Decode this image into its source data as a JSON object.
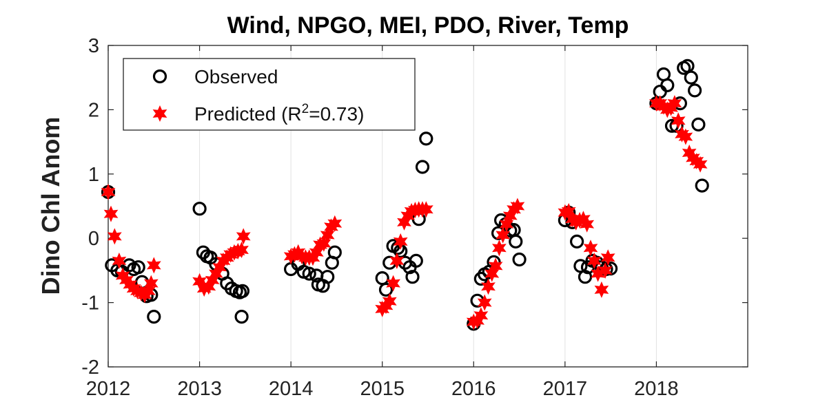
{
  "chart_data": {
    "type": "scatter",
    "title": "Wind, NPGO, MEI, PDO, River, Temp",
    "xlabel": "",
    "ylabel": "Dino Chl Anom",
    "xlim": [
      2012,
      2019
    ],
    "ylim": [
      -2,
      3
    ],
    "xticks": [
      "2012",
      "2013",
      "2014",
      "2015",
      "2016",
      "2017",
      "2018"
    ],
    "yticks": [
      "-2",
      "-1",
      "0",
      "1",
      "2",
      "3"
    ],
    "grid": "vertical",
    "legend_position": "top-left",
    "r_squared": "0.73",
    "series": [
      {
        "name": "Observed",
        "marker": "open-circle",
        "color": "#000000",
        "points": [
          [
            2012.0,
            0.72
          ],
          [
            2012.04,
            -0.42
          ],
          [
            2012.1,
            -0.5
          ],
          [
            2012.15,
            -0.52
          ],
          [
            2012.23,
            -0.42
          ],
          [
            2012.28,
            -0.48
          ],
          [
            2012.33,
            -0.45
          ],
          [
            2012.37,
            -0.68
          ],
          [
            2012.42,
            -0.9
          ],
          [
            2012.47,
            -0.88
          ],
          [
            2012.5,
            -1.22
          ],
          [
            2013.0,
            0.46
          ],
          [
            2013.04,
            -0.22
          ],
          [
            2013.08,
            -0.28
          ],
          [
            2013.12,
            -0.3
          ],
          [
            2013.18,
            -0.4
          ],
          [
            2013.25,
            -0.55
          ],
          [
            2013.3,
            -0.7
          ],
          [
            2013.35,
            -0.78
          ],
          [
            2013.4,
            -0.82
          ],
          [
            2013.44,
            -0.84
          ],
          [
            2013.47,
            -0.82
          ],
          [
            2013.46,
            -1.22
          ],
          [
            2014.0,
            -0.48
          ],
          [
            2014.08,
            -0.4
          ],
          [
            2014.14,
            -0.52
          ],
          [
            2014.2,
            -0.55
          ],
          [
            2014.28,
            -0.58
          ],
          [
            2014.3,
            -0.72
          ],
          [
            2014.35,
            -0.74
          ],
          [
            2014.4,
            -0.6
          ],
          [
            2014.45,
            -0.38
          ],
          [
            2014.48,
            -0.22
          ],
          [
            2015.0,
            -0.62
          ],
          [
            2015.04,
            -0.8
          ],
          [
            2015.08,
            -0.38
          ],
          [
            2015.12,
            -0.12
          ],
          [
            2015.17,
            -0.15
          ],
          [
            2015.2,
            -0.2
          ],
          [
            2015.25,
            -0.38
          ],
          [
            2015.3,
            -0.45
          ],
          [
            2015.33,
            -0.6
          ],
          [
            2015.37,
            -0.35
          ],
          [
            2015.4,
            0.3
          ],
          [
            2015.44,
            1.11
          ],
          [
            2015.48,
            1.55
          ],
          [
            2016.0,
            -1.33
          ],
          [
            2016.04,
            -0.97
          ],
          [
            2016.08,
            -0.63
          ],
          [
            2016.12,
            -0.56
          ],
          [
            2016.17,
            -0.52
          ],
          [
            2016.22,
            -0.37
          ],
          [
            2016.27,
            0.08
          ],
          [
            2016.3,
            0.28
          ],
          [
            2016.35,
            0.22
          ],
          [
            2016.4,
            0.12
          ],
          [
            2016.44,
            0.13
          ],
          [
            2016.46,
            -0.05
          ],
          [
            2016.5,
            -0.33
          ],
          [
            2017.0,
            0.28
          ],
          [
            2017.04,
            0.4
          ],
          [
            2017.08,
            0.25
          ],
          [
            2017.13,
            -0.05
          ],
          [
            2017.17,
            -0.43
          ],
          [
            2017.22,
            -0.6
          ],
          [
            2017.25,
            -0.45
          ],
          [
            2017.3,
            -0.35
          ],
          [
            2017.35,
            -0.38
          ],
          [
            2017.4,
            -0.45
          ],
          [
            2017.45,
            -0.48
          ],
          [
            2017.5,
            -0.47
          ],
          [
            2018.0,
            2.1
          ],
          [
            2018.04,
            2.28
          ],
          [
            2018.08,
            2.55
          ],
          [
            2018.12,
            2.38
          ],
          [
            2018.17,
            1.75
          ],
          [
            2018.22,
            1.75
          ],
          [
            2018.26,
            2.1
          ],
          [
            2018.3,
            2.65
          ],
          [
            2018.34,
            2.68
          ],
          [
            2018.38,
            2.5
          ],
          [
            2018.42,
            2.3
          ],
          [
            2018.46,
            1.77
          ],
          [
            2018.5,
            0.82
          ]
        ]
      },
      {
        "name": "Predicted (R²=0.73)",
        "marker": "filled-star",
        "color": "#ff0000",
        "points": [
          [
            2012.0,
            0.72
          ],
          [
            2012.03,
            0.38
          ],
          [
            2012.07,
            0.03
          ],
          [
            2012.12,
            -0.35
          ],
          [
            2012.16,
            -0.58
          ],
          [
            2012.2,
            -0.65
          ],
          [
            2012.24,
            -0.72
          ],
          [
            2012.28,
            -0.78
          ],
          [
            2012.32,
            -0.82
          ],
          [
            2012.36,
            -0.85
          ],
          [
            2012.4,
            -0.88
          ],
          [
            2012.44,
            -0.82
          ],
          [
            2012.47,
            -0.7
          ],
          [
            2012.5,
            -0.42
          ],
          [
            2013.0,
            -0.67
          ],
          [
            2013.05,
            -0.78
          ],
          [
            2013.1,
            -0.75
          ],
          [
            2013.14,
            -0.65
          ],
          [
            2013.18,
            -0.55
          ],
          [
            2013.22,
            -0.45
          ],
          [
            2013.26,
            -0.35
          ],
          [
            2013.3,
            -0.3
          ],
          [
            2013.34,
            -0.25
          ],
          [
            2013.38,
            -0.22
          ],
          [
            2013.42,
            -0.2
          ],
          [
            2013.46,
            -0.18
          ],
          [
            2013.48,
            0.03
          ],
          [
            2014.0,
            -0.28
          ],
          [
            2014.04,
            -0.25
          ],
          [
            2014.08,
            -0.22
          ],
          [
            2014.12,
            -0.28
          ],
          [
            2014.16,
            -0.3
          ],
          [
            2014.2,
            -0.3
          ],
          [
            2014.24,
            -0.3
          ],
          [
            2014.28,
            -0.22
          ],
          [
            2014.32,
            -0.1
          ],
          [
            2014.36,
            -0.08
          ],
          [
            2014.4,
            0.05
          ],
          [
            2014.44,
            0.18
          ],
          [
            2014.48,
            0.23
          ],
          [
            2015.0,
            -1.1
          ],
          [
            2015.04,
            -1.05
          ],
          [
            2015.08,
            -0.98
          ],
          [
            2015.12,
            -0.7
          ],
          [
            2015.16,
            -0.35
          ],
          [
            2015.2,
            -0.05
          ],
          [
            2015.24,
            0.25
          ],
          [
            2015.28,
            0.35
          ],
          [
            2015.32,
            0.42
          ],
          [
            2015.36,
            0.44
          ],
          [
            2015.4,
            0.45
          ],
          [
            2015.44,
            0.45
          ],
          [
            2015.48,
            0.45
          ],
          [
            2016.0,
            -1.3
          ],
          [
            2016.04,
            -1.28
          ],
          [
            2016.08,
            -1.2
          ],
          [
            2016.12,
            -1.0
          ],
          [
            2016.16,
            -0.75
          ],
          [
            2016.2,
            -0.55
          ],
          [
            2016.24,
            -0.43
          ],
          [
            2016.28,
            -0.15
          ],
          [
            2016.32,
            0.05
          ],
          [
            2016.36,
            0.22
          ],
          [
            2016.4,
            0.35
          ],
          [
            2016.44,
            0.45
          ],
          [
            2016.48,
            0.5
          ],
          [
            2017.0,
            0.4
          ],
          [
            2017.04,
            0.42
          ],
          [
            2017.08,
            0.3
          ],
          [
            2017.12,
            0.25
          ],
          [
            2017.16,
            0.28
          ],
          [
            2017.2,
            0.3
          ],
          [
            2017.24,
            0.22
          ],
          [
            2017.28,
            -0.15
          ],
          [
            2017.32,
            -0.35
          ],
          [
            2017.36,
            -0.55
          ],
          [
            2017.4,
            -0.8
          ],
          [
            2017.44,
            -0.5
          ],
          [
            2017.47,
            -0.3
          ],
          [
            2018.0,
            2.1
          ],
          [
            2018.04,
            2.1
          ],
          [
            2018.08,
            2.05
          ],
          [
            2018.12,
            2.0
          ],
          [
            2018.16,
            2.03
          ],
          [
            2018.2,
            2.1
          ],
          [
            2018.24,
            1.83
          ],
          [
            2018.28,
            1.62
          ],
          [
            2018.32,
            1.58
          ],
          [
            2018.36,
            1.33
          ],
          [
            2018.4,
            1.25
          ],
          [
            2018.44,
            1.2
          ],
          [
            2018.48,
            1.15
          ]
        ]
      }
    ]
  }
}
